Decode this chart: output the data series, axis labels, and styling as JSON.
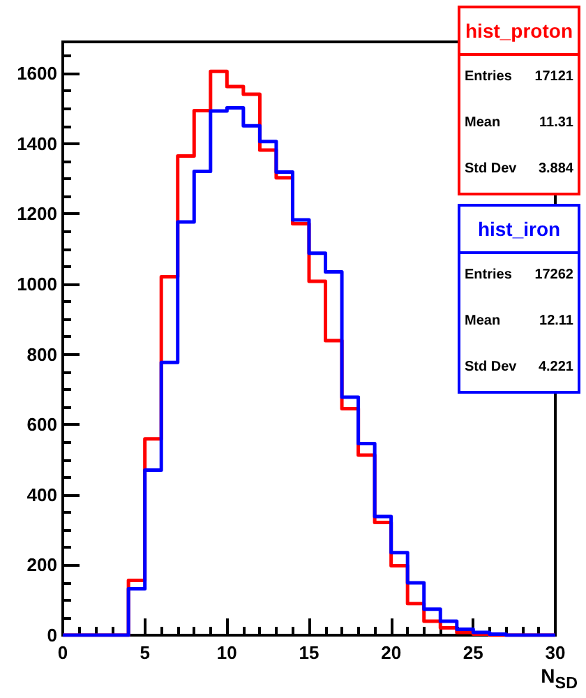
{
  "chart_data": {
    "type": "histogram",
    "xlabel": "N$_{SD}$",
    "bins": [
      0,
      1,
      2,
      3,
      4,
      5,
      6,
      7,
      8,
      9,
      10,
      11,
      12,
      13,
      14,
      15,
      16,
      17,
      18,
      19,
      20,
      21,
      22,
      23,
      24,
      25,
      26,
      27,
      28,
      29,
      30
    ],
    "series": [
      {
        "name": "hist_proton",
        "color": "#ff0000",
        "values": [
          0,
          0,
          0,
          0,
          156,
          559,
          1021,
          1365,
          1494,
          1606,
          1563,
          1541,
          1382,
          1303,
          1172,
          1008,
          839,
          645,
          513,
          321,
          198,
          90,
          40,
          21,
          8,
          3,
          0,
          0,
          0,
          0
        ]
      },
      {
        "name": "hist_iron",
        "color": "#0000ff",
        "values": [
          0,
          0,
          0,
          0,
          132,
          470,
          777,
          1177,
          1321,
          1493,
          1502,
          1451,
          1406,
          1319,
          1183,
          1088,
          1035,
          678,
          546,
          338,
          235,
          149,
          74,
          40,
          17,
          8,
          3,
          0,
          0,
          0
        ]
      }
    ],
    "annotations": [
      "Entries",
      "17121",
      "Mean",
      "11.31",
      "Std Dev",
      "3.884",
      "Entries",
      "17262",
      "Mean",
      "12.11",
      "Std Dev",
      "4.221"
    ],
    "xlim": [
      0,
      30
    ],
    "xticks": [
      0,
      5,
      10,
      15,
      20,
      25,
      30
    ],
    "ylim": [
      0,
      1690
    ],
    "yticks": [
      0,
      200,
      400,
      600,
      800,
      1000,
      1200,
      1400,
      1600
    ],
    "grid": false,
    "legend": "top right"
  }
}
